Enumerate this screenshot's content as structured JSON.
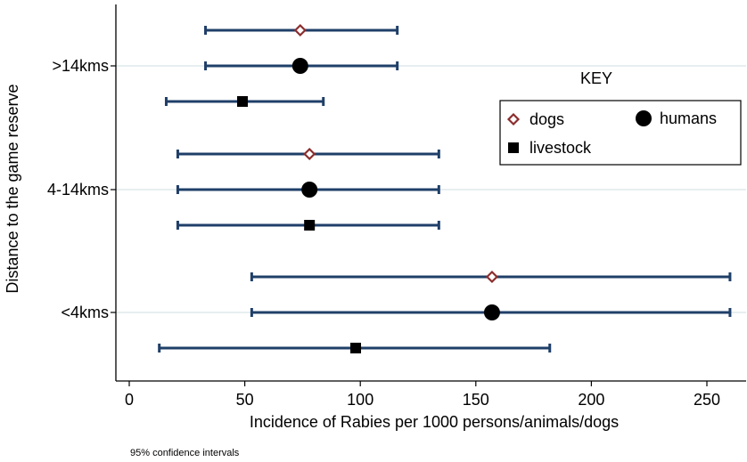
{
  "chart_data": {
    "type": "forest",
    "title": "",
    "xlabel": "Incidence of Rabies per 1000 persons/animals/dogs",
    "ylabel": "Distance to the game reserve",
    "xlim": [
      -5,
      262
    ],
    "xticks": [
      0,
      50,
      100,
      150,
      200,
      250
    ],
    "grid": "horizontal",
    "categories": [
      ">14kms",
      "4-14kms",
      "<4kms"
    ],
    "series": [
      {
        "name": "dogs",
        "marker": "diamond",
        "points": [
          {
            "category": ">14kms",
            "estimate": 74,
            "lower": 33,
            "upper": 116
          },
          {
            "category": "4-14kms",
            "estimate": 78,
            "lower": 21,
            "upper": 134
          },
          {
            "category": "<4kms",
            "estimate": 157,
            "lower": 53,
            "upper": 260
          }
        ]
      },
      {
        "name": "humans",
        "marker": "circle",
        "points": [
          {
            "category": ">14kms",
            "estimate": 74,
            "lower": 33,
            "upper": 116
          },
          {
            "category": "4-14kms",
            "estimate": 78,
            "lower": 21,
            "upper": 134
          },
          {
            "category": "<4kms",
            "estimate": 157,
            "lower": 53,
            "upper": 260
          }
        ]
      },
      {
        "name": "livestock",
        "marker": "square",
        "points": [
          {
            "category": ">14kms",
            "estimate": 49,
            "lower": 16,
            "upper": 84
          },
          {
            "category": "4-14kms",
            "estimate": 78,
            "lower": 21,
            "upper": 134
          },
          {
            "category": "<4kms",
            "estimate": 98,
            "lower": 13,
            "upper": 182
          }
        ]
      }
    ],
    "legend": {
      "title": "KEY",
      "placement": "right",
      "entries": [
        "dogs",
        "humans",
        "livestock"
      ]
    },
    "note": "95% confidence intervals"
  },
  "colors": {
    "errorbar": "#1f3f68",
    "dogs": "#8b2d2d",
    "grid": "#e7eef0",
    "axis": "#000000"
  }
}
